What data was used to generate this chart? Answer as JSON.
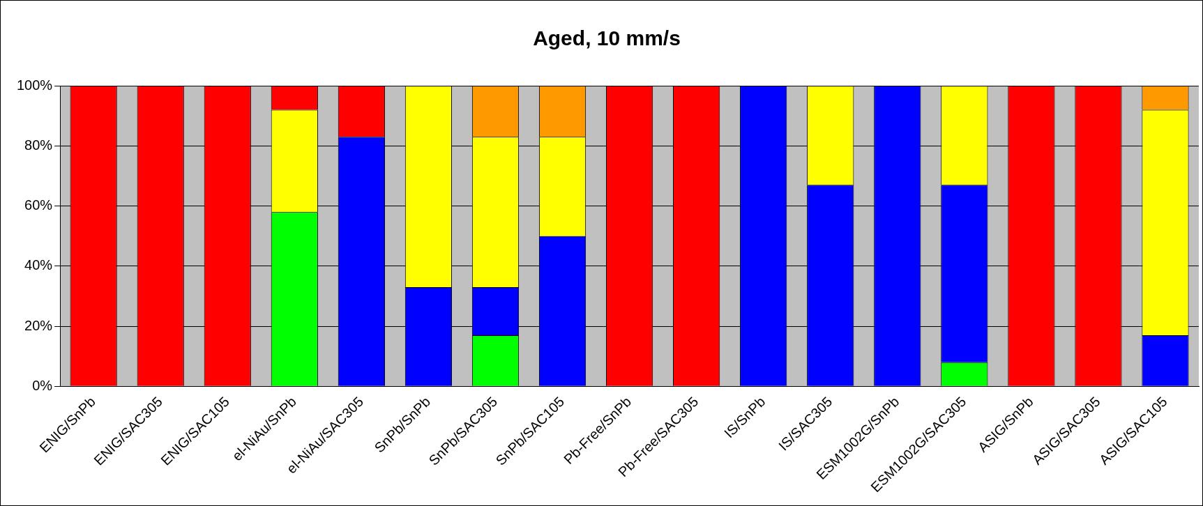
{
  "chart_data": {
    "type": "bar",
    "title": "Aged, 10 mm/s",
    "stacked": true,
    "grid": "y",
    "legend": false,
    "categories": [
      "ENIG/SnPb",
      "ENIG/SAC305",
      "ENIG/SAC105",
      "el-NiAu/SnPb",
      "el-NiAu/SAC305",
      "SnPb/SnPb",
      "SnPb/SAC305",
      "SnPb/SAC105",
      "Pb-Free/SnPb",
      "Pb-Free/SAC305",
      "IS/SnPb",
      "IS/SAC305",
      "ESM1002G/SnPb",
      "ESM1002G/SAC305",
      "ASIG/SnPb",
      "ASIG/SAC305",
      "ASIG/SAC105"
    ],
    "series": [
      {
        "color": "#00ff00",
        "values": [
          0,
          0,
          0,
          58,
          0,
          0,
          17,
          0,
          0,
          0,
          0,
          0,
          0,
          8,
          0,
          0,
          0
        ]
      },
      {
        "color": "#0000ff",
        "values": [
          0,
          0,
          0,
          0,
          83,
          33,
          16,
          50,
          0,
          0,
          100,
          67,
          100,
          59,
          0,
          0,
          17
        ]
      },
      {
        "color": "#ffff00",
        "values": [
          0,
          0,
          0,
          34,
          0,
          67,
          50,
          33,
          0,
          0,
          0,
          33,
          0,
          33,
          0,
          0,
          75
        ]
      },
      {
        "color": "#ff9900",
        "values": [
          0,
          0,
          0,
          0,
          0,
          0,
          17,
          17,
          0,
          0,
          0,
          0,
          0,
          0,
          0,
          0,
          8
        ]
      },
      {
        "color": "#ff0000",
        "values": [
          100,
          100,
          100,
          8,
          17,
          0,
          0,
          0,
          100,
          100,
          0,
          0,
          0,
          0,
          100,
          100,
          0
        ]
      }
    ],
    "ylim": [
      0,
      100
    ],
    "yticks": [
      {
        "value": 0,
        "label": "0%"
      },
      {
        "value": 20,
        "label": "20%"
      },
      {
        "value": 40,
        "label": "40%"
      },
      {
        "value": 60,
        "label": "60%"
      },
      {
        "value": 80,
        "label": "80%"
      },
      {
        "value": 100,
        "label": "100%"
      }
    ]
  }
}
